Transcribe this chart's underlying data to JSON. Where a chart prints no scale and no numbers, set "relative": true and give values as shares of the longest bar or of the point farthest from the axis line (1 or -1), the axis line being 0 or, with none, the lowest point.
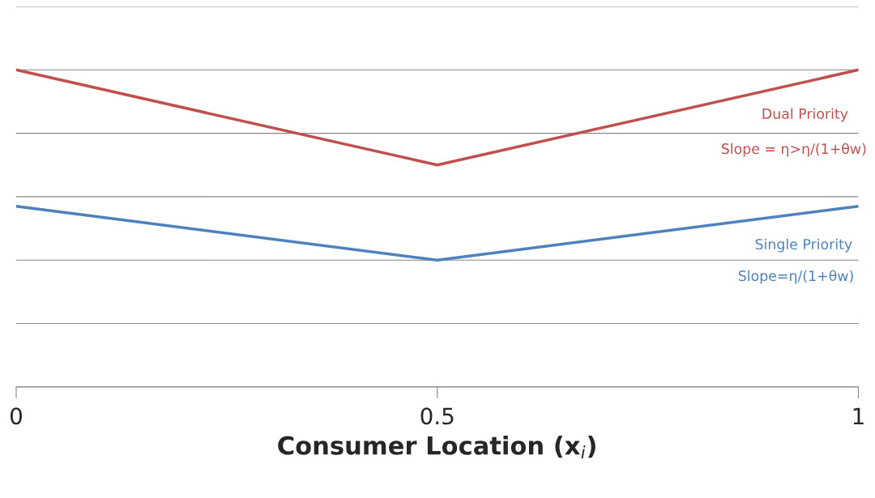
{
  "chart_data": {
    "type": "line",
    "relative": true,
    "xlabel": "Consumer Location (x$_{i}$)",
    "x": [
      0,
      0.5,
      1
    ],
    "xlim": [
      0,
      1
    ],
    "xticks": [
      0,
      0.5,
      1
    ],
    "grid": "y",
    "tick_labels": "x",
    "marker": "none",
    "line_style": "solid",
    "series": [
      {
        "name": "Dual Priority",
        "color": "#c0504d",
        "values": [
          1,
          0.7,
          1
        ]
      },
      {
        "name": "Single Priority",
        "color": "#4f81bd",
        "values": [
          0.57,
          0.4,
          0.57
        ]
      }
    ],
    "annotations": [
      "Slope = η>η/(1+θw)",
      "Slope=η/(1+θw)"
    ]
  }
}
